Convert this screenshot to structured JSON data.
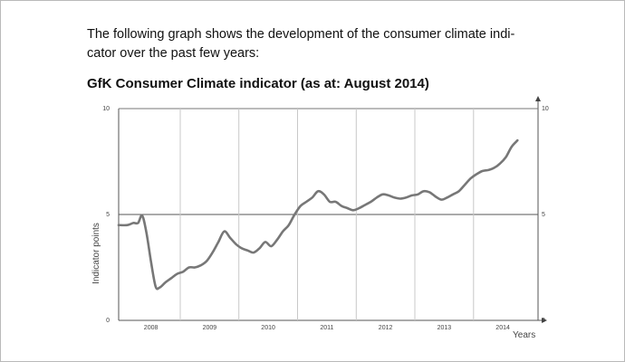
{
  "intro": {
    "line1": "The following graph shows the development of the consumer climate indi-",
    "line2": "cator over the past few years:"
  },
  "chart_data": {
    "type": "line",
    "title": "GfK Consumer Climate indicator (as at: August 2014)",
    "xlabel": "Years",
    "ylabel": "Indicator points",
    "ylim": [
      0,
      10
    ],
    "xlim": [
      2007.45,
      2014.6
    ],
    "y_ticks": [
      "0",
      "5",
      "10"
    ],
    "x_tick_labels": [
      "2008",
      "2009",
      "2010",
      "2011",
      "2012",
      "2013",
      "2014"
    ],
    "x_tick_positions": [
      2008,
      2009,
      2010,
      2011,
      2012,
      2013,
      2014
    ],
    "year_dividers": [
      2008.5,
      2009.5,
      2010.5,
      2011.5,
      2012.5,
      2013.5
    ],
    "reference_line": 5,
    "grid": "vertical",
    "series": [
      {
        "name": "GfK Consumer Climate indicator",
        "x": [
          2007.45,
          2007.6,
          2007.7,
          2007.78,
          2007.85,
          2007.92,
          2008.0,
          2008.08,
          2008.15,
          2008.25,
          2008.35,
          2008.45,
          2008.55,
          2008.65,
          2008.75,
          2008.85,
          2008.95,
          2009.05,
          2009.15,
          2009.25,
          2009.35,
          2009.45,
          2009.55,
          2009.65,
          2009.75,
          2009.85,
          2009.95,
          2010.05,
          2010.15,
          2010.25,
          2010.35,
          2010.45,
          2010.55,
          2010.65,
          2010.75,
          2010.85,
          2010.95,
          2011.05,
          2011.15,
          2011.25,
          2011.35,
          2011.45,
          2011.55,
          2011.65,
          2011.75,
          2011.85,
          2011.95,
          2012.05,
          2012.15,
          2012.25,
          2012.35,
          2012.45,
          2012.55,
          2012.65,
          2012.75,
          2012.85,
          2012.95,
          2013.05,
          2013.15,
          2013.25,
          2013.35,
          2013.45,
          2013.55,
          2013.65,
          2013.75,
          2013.85,
          2013.95,
          2014.05,
          2014.15,
          2014.25
        ],
        "values": [
          4.5,
          4.5,
          4.6,
          4.6,
          4.95,
          4.2,
          2.8,
          1.6,
          1.55,
          1.8,
          2.0,
          2.2,
          2.3,
          2.5,
          2.5,
          2.6,
          2.8,
          3.2,
          3.7,
          4.2,
          3.9,
          3.6,
          3.4,
          3.3,
          3.2,
          3.4,
          3.7,
          3.5,
          3.8,
          4.2,
          4.5,
          5.0,
          5.4,
          5.6,
          5.8,
          6.1,
          5.95,
          5.6,
          5.6,
          5.4,
          5.3,
          5.2,
          5.3,
          5.45,
          5.6,
          5.8,
          5.95,
          5.9,
          5.8,
          5.75,
          5.8,
          5.9,
          5.95,
          6.1,
          6.05,
          5.85,
          5.7,
          5.8,
          5.95,
          6.1,
          6.4,
          6.7,
          6.9,
          7.05,
          7.1,
          7.2,
          7.4,
          7.7,
          8.2,
          8.5
        ]
      }
    ]
  }
}
